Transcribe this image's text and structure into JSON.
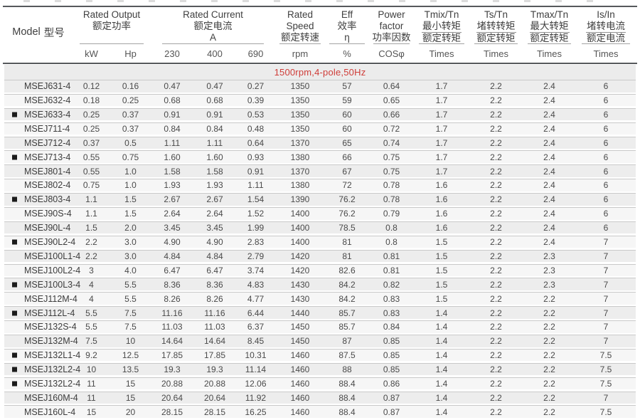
{
  "colors": {
    "accent_red": "#cf3c38",
    "banner_bg": "#ececec",
    "row_stripe_a": "#ededed",
    "row_stripe_b": "#f6f6f6"
  },
  "header": {
    "model": {
      "title_en": "Model",
      "title_zh": "型号"
    },
    "groups": [
      {
        "key": "rated-output",
        "lines": [
          "Rated Output",
          "额定功率"
        ],
        "fraction": false,
        "span": 2,
        "units": [
          "kW",
          "Hp"
        ]
      },
      {
        "key": "rated-current",
        "lines": [
          "Rated Current",
          "额定电流",
          "A"
        ],
        "fraction": false,
        "span": 3,
        "units": [
          "230",
          "400",
          "690"
        ]
      },
      {
        "key": "rated-speed",
        "lines": [
          "Rated",
          "Speed",
          "额定转速"
        ],
        "fraction": false,
        "span": 1,
        "units": [
          "rpm"
        ]
      },
      {
        "key": "efficiency",
        "lines": [
          "Eff",
          "效率",
          "η"
        ],
        "fraction": false,
        "span": 1,
        "units": [
          "%"
        ]
      },
      {
        "key": "power-factor",
        "lines": [
          "Power",
          "factor",
          "功率因数"
        ],
        "fraction": false,
        "span": 1,
        "units": [
          "COSφ"
        ]
      },
      {
        "key": "tmix-tn",
        "lines": [
          "Tmix/Tn",
          "最小转矩",
          "额定转矩"
        ],
        "fraction": true,
        "span": 1,
        "units": [
          "Times"
        ]
      },
      {
        "key": "ts-tn",
        "lines": [
          "Ts/Tn",
          "堵转转矩",
          "额定转矩"
        ],
        "fraction": true,
        "span": 1,
        "units": [
          "Times"
        ]
      },
      {
        "key": "tmax-tn",
        "lines": [
          "Tmax/Tn",
          "最大转矩",
          "额定转矩"
        ],
        "fraction": true,
        "span": 1,
        "units": [
          "Times"
        ]
      },
      {
        "key": "is-in",
        "lines": [
          "Is/In",
          "堵转电流",
          "额定电流"
        ],
        "fraction": true,
        "span": 1,
        "units": [
          "Times"
        ]
      }
    ]
  },
  "banner": "1500rpm,4-pole,50Hz",
  "rows": [
    {
      "marker": false,
      "model": "MSEJ631-4",
      "values": [
        "0.12",
        "0.16",
        "0.47",
        "0.47",
        "0.27",
        "1350",
        "57",
        "0.64",
        "1.7",
        "2.2",
        "2.4",
        "6"
      ]
    },
    {
      "marker": false,
      "model": "MSEJ632-4",
      "values": [
        "0.18",
        "0.25",
        "0.68",
        "0.68",
        "0.39",
        "1350",
        "59",
        "0.65",
        "1.7",
        "2.2",
        "2.4",
        "6"
      ]
    },
    {
      "marker": true,
      "model": "MSEJ633-4",
      "values": [
        "0.25",
        "0.37",
        "0.91",
        "0.91",
        "0.53",
        "1350",
        "60",
        "0.66",
        "1.7",
        "2.2",
        "2.4",
        "6"
      ]
    },
    {
      "marker": false,
      "model": "MSEJ711-4",
      "values": [
        "0.25",
        "0.37",
        "0.84",
        "0.84",
        "0.48",
        "1350",
        "60",
        "0.72",
        "1.7",
        "2.2",
        "2.4",
        "6"
      ]
    },
    {
      "marker": false,
      "model": "MSEJ712-4",
      "values": [
        "0.37",
        "0.5",
        "1.11",
        "1.11",
        "0.64",
        "1370",
        "65",
        "0.74",
        "1.7",
        "2.2",
        "2.4",
        "6"
      ]
    },
    {
      "marker": true,
      "model": "MSEJ713-4",
      "values": [
        "0.55",
        "0.75",
        "1.60",
        "1.60",
        "0.93",
        "1380",
        "66",
        "0.75",
        "1.7",
        "2.2",
        "2.4",
        "6"
      ]
    },
    {
      "marker": false,
      "model": "MSEJ801-4",
      "values": [
        "0.55",
        "1.0",
        "1.58",
        "1.58",
        "0.91",
        "1370",
        "67",
        "0.75",
        "1.7",
        "2.2",
        "2.4",
        "6"
      ]
    },
    {
      "marker": false,
      "model": "MSEJ802-4",
      "values": [
        "0.75",
        "1.0",
        "1.93",
        "1.93",
        "1.11",
        "1380",
        "72",
        "0.78",
        "1.6",
        "2.2",
        "2.4",
        "6"
      ]
    },
    {
      "marker": true,
      "model": "MSEJ803-4",
      "values": [
        "1.1",
        "1.5",
        "2.67",
        "2.67",
        "1.54",
        "1390",
        "76.2",
        "0.78",
        "1.6",
        "2.2",
        "2.4",
        "6"
      ]
    },
    {
      "marker": false,
      "model": "MSEJ90S-4",
      "values": [
        "1.1",
        "1.5",
        "2.64",
        "2.64",
        "1.52",
        "1400",
        "76.2",
        "0.79",
        "1.6",
        "2.2",
        "2.4",
        "6"
      ]
    },
    {
      "marker": false,
      "model": "MSEJ90L-4",
      "values": [
        "1.5",
        "2.0",
        "3.45",
        "3.45",
        "1.99",
        "1400",
        "78.5",
        "0.8",
        "1.6",
        "2.2",
        "2.4",
        "6"
      ]
    },
    {
      "marker": true,
      "model": "MSEJ90L2-4",
      "values": [
        "2.2",
        "3.0",
        "4.90",
        "4.90",
        "2.83",
        "1400",
        "81",
        "0.8",
        "1.5",
        "2.2",
        "2.4",
        "7"
      ]
    },
    {
      "marker": false,
      "model": "MSEJ100L1-4",
      "values": [
        "2.2",
        "3.0",
        "4.84",
        "4.84",
        "2.79",
        "1420",
        "81",
        "0.81",
        "1.5",
        "2.2",
        "2.3",
        "7"
      ]
    },
    {
      "marker": false,
      "model": "MSEJ100L2-4",
      "values": [
        "3",
        "4.0",
        "6.47",
        "6.47",
        "3.74",
        "1420",
        "82.6",
        "0.81",
        "1.5",
        "2.2",
        "2.3",
        "7"
      ]
    },
    {
      "marker": true,
      "model": "MSEJ100L3-4",
      "values": [
        "4",
        "5.5",
        "8.36",
        "8.36",
        "4.83",
        "1430",
        "84.2",
        "0.82",
        "1.5",
        "2.2",
        "2.3",
        "7"
      ]
    },
    {
      "marker": false,
      "model": "MSEJ112M-4",
      "values": [
        "4",
        "5.5",
        "8.26",
        "8.26",
        "4.77",
        "1430",
        "84.2",
        "0.83",
        "1.5",
        "2.2",
        "2.2",
        "7"
      ]
    },
    {
      "marker": true,
      "model": "MSEJ112L-4",
      "values": [
        "5.5",
        "7.5",
        "11.16",
        "11.16",
        "6.44",
        "1440",
        "85.7",
        "0.83",
        "1.4",
        "2.2",
        "2.2",
        "7"
      ]
    },
    {
      "marker": false,
      "model": "MSEJ132S-4",
      "values": [
        "5.5",
        "7.5",
        "11.03",
        "11.03",
        "6.37",
        "1450",
        "85.7",
        "0.84",
        "1.4",
        "2.2",
        "2.2",
        "7"
      ]
    },
    {
      "marker": false,
      "model": "MSEJ132M-4",
      "values": [
        "7.5",
        "10",
        "14.64",
        "14.64",
        "8.45",
        "1450",
        "87",
        "0.85",
        "1.4",
        "2.2",
        "2.2",
        "7"
      ]
    },
    {
      "marker": true,
      "model": "MSEJ132L1-4",
      "values": [
        "9.2",
        "12.5",
        "17.85",
        "17.85",
        "10.31",
        "1460",
        "87.5",
        "0.85",
        "1.4",
        "2.2",
        "2.2",
        "7.5"
      ]
    },
    {
      "marker": true,
      "model": "MSEJ132L2-4",
      "values": [
        "10",
        "13.5",
        "19.3",
        "19.3",
        "11.14",
        "1460",
        "88",
        "0.85",
        "1.4",
        "2.2",
        "2.2",
        "7.5"
      ]
    },
    {
      "marker": true,
      "model": "MSEJ132L2-4",
      "values": [
        "11",
        "15",
        "20.88",
        "20.88",
        "12.06",
        "1460",
        "88.4",
        "0.86",
        "1.4",
        "2.2",
        "2.2",
        "7.5"
      ]
    },
    {
      "marker": false,
      "model": "MSEJ160M-4",
      "values": [
        "11",
        "15",
        "20.64",
        "20.64",
        "11.92",
        "1460",
        "88.4",
        "0.87",
        "1.4",
        "2.2",
        "2.2",
        "7"
      ]
    },
    {
      "marker": false,
      "model": "MSEJ160L-4",
      "values": [
        "15",
        "20",
        "28.15",
        "28.15",
        "16.25",
        "1460",
        "88.4",
        "0.87",
        "1.4",
        "2.2",
        "2.2",
        "7.5"
      ]
    }
  ]
}
